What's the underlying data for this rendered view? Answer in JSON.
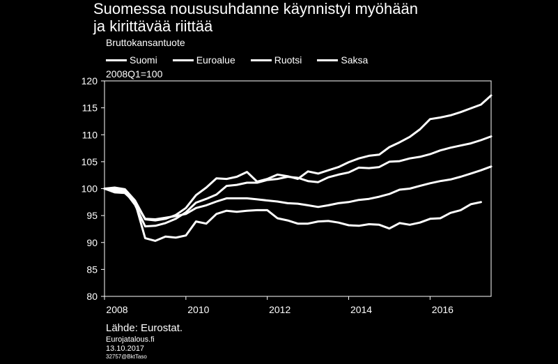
{
  "title_line1": "Suomessa noususuhdanne käynnistyi myöhään",
  "title_line2": "ja kirittävää riittää",
  "subtitle": "Bruttokansantuote",
  "unit_note": "2008Q1=100",
  "source": "Lähde: Eurostat.",
  "site": "Eurojatalous.fi",
  "date": "13.10.2017",
  "code": "32757@BktTaso",
  "colors": {
    "background": "#000000",
    "foreground": "#ffffff"
  },
  "chart_data": {
    "type": "line",
    "title": "Suomessa noususuhdanne käynnistyi myöhään ja kirittävää riittää",
    "ylabel": "Bruttokansantuote",
    "ylim": [
      80,
      120
    ],
    "yticks": [
      80,
      85,
      90,
      95,
      100,
      105,
      110,
      115,
      120
    ],
    "xticks": [
      2008,
      2010,
      2012,
      2014,
      2016
    ],
    "xlim": [
      2008,
      2017.5
    ],
    "grid": false,
    "legend_position": "top",
    "x_start": 2008,
    "x_step": 0.25,
    "series": [
      {
        "name": "Suomi",
        "values": [
          100,
          99.3,
          99.2,
          97.5,
          90.8,
          90.3,
          91.1,
          90.9,
          91.3,
          93.9,
          93.5,
          95.3,
          95.9,
          95.7,
          95.9,
          96.0,
          96.0,
          94.5,
          94.1,
          93.5,
          93.5,
          93.9,
          94.0,
          93.7,
          93.2,
          93.1,
          93.4,
          93.3,
          92.6,
          93.6,
          93.3,
          93.7,
          94.4,
          94.5,
          95.5,
          96.0,
          97.1,
          97.5
        ]
      },
      {
        "name": "Euroalue",
        "values": [
          100,
          99.6,
          99.2,
          97.4,
          94.4,
          94.3,
          94.6,
          94.9,
          95.3,
          96.4,
          96.9,
          97.6,
          98.2,
          98.2,
          98.2,
          98.0,
          97.8,
          97.6,
          97.3,
          97.2,
          96.9,
          96.6,
          96.9,
          97.3,
          97.5,
          97.9,
          98.1,
          98.5,
          99.0,
          99.8,
          100.0,
          100.5,
          101.0,
          101.4,
          101.7,
          102.2,
          102.8,
          103.4,
          104.1
        ]
      },
      {
        "name": "Ruotsi",
        "values": [
          100,
          99.9,
          99.5,
          97.0,
          93.0,
          93.1,
          93.6,
          94.4,
          95.6,
          97.4,
          98.1,
          98.9,
          100.5,
          100.7,
          101.1,
          101.1,
          101.6,
          101.8,
          102.2,
          102.0,
          101.4,
          101.2,
          102.1,
          102.6,
          103.0,
          103.9,
          103.8,
          104.0,
          105.0,
          105.1,
          105.6,
          105.9,
          106.4,
          107.1,
          107.6,
          108.0,
          108.4,
          109.0,
          109.7
        ]
      },
      {
        "name": "Saksa",
        "values": [
          100,
          100.2,
          99.9,
          97.8,
          94.3,
          94.1,
          94.4,
          95.1,
          96.4,
          98.8,
          100.2,
          101.9,
          101.8,
          102.2,
          103.1,
          101.3,
          101.8,
          102.6,
          102.3,
          101.8,
          103.2,
          102.8,
          103.4,
          104.0,
          104.9,
          105.6,
          106.1,
          106.3,
          107.7,
          108.6,
          109.6,
          111.0,
          112.9,
          113.2,
          113.6,
          114.2,
          114.9,
          115.6,
          117.3
        ]
      }
    ]
  }
}
